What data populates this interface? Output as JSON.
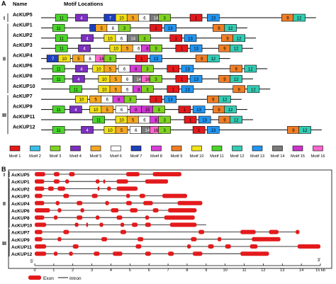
{
  "panel_a": {
    "label": "A",
    "name_header": "Name",
    "motif_header": "Motif Locations",
    "groups": [
      "I",
      "II",
      "III"
    ],
    "genes": [
      {
        "name": "AcKUP5",
        "group": "I",
        "motifs": [
          {
            "id": 11,
            "pos": 0.05
          },
          {
            "id": 4,
            "pos": 0.12
          },
          {
            "id": 7,
            "pos": 0.22
          },
          {
            "id": 10,
            "pos": 0.26
          },
          {
            "id": 5,
            "pos": 0.3
          },
          {
            "id": 6,
            "pos": 0.34
          },
          {
            "id": 14,
            "pos": 0.38
          },
          {
            "id": 3,
            "pos": 0.41
          },
          {
            "id": 1,
            "pos": 0.52
          },
          {
            "id": 13,
            "pos": 0.58
          },
          {
            "id": 9,
            "pos": 0.84
          },
          {
            "id": 12,
            "pos": 0.88
          }
        ]
      },
      {
        "name": "AcKUP1",
        "group": "II",
        "motifs": [
          {
            "id": 11,
            "pos": 0.04
          },
          {
            "id": 7,
            "pos": 0.17
          },
          {
            "id": 5,
            "pos": 0.19
          },
          {
            "id": 6,
            "pos": 0.23
          },
          {
            "id": 3,
            "pos": 0.27
          },
          {
            "id": 1,
            "pos": 0.38
          },
          {
            "id": 13,
            "pos": 0.43
          },
          {
            "id": 9,
            "pos": 0.6
          },
          {
            "id": 12,
            "pos": 0.64
          }
        ]
      },
      {
        "name": "AcKUP2",
        "group": "II",
        "motifs": [
          {
            "id": 11,
            "pos": 0.05
          },
          {
            "id": 4,
            "pos": 0.14
          },
          {
            "id": 10,
            "pos": 0.22
          },
          {
            "id": 6,
            "pos": 0.26
          },
          {
            "id": 14,
            "pos": 0.3
          },
          {
            "id": 3,
            "pos": 0.34
          },
          {
            "id": 1,
            "pos": 0.45
          },
          {
            "id": 13,
            "pos": 0.5
          },
          {
            "id": 9,
            "pos": 0.63
          },
          {
            "id": 12,
            "pos": 0.67
          }
        ]
      },
      {
        "name": "AcKUP3",
        "group": "II",
        "motifs": [
          {
            "id": 11,
            "pos": 0.05
          },
          {
            "id": 4,
            "pos": 0.13
          },
          {
            "id": 10,
            "pos": 0.24
          },
          {
            "id": 5,
            "pos": 0.28
          },
          {
            "id": 6,
            "pos": 0.32
          },
          {
            "id": 8,
            "pos": 0.35
          },
          {
            "id": 3,
            "pos": 0.38
          },
          {
            "id": 1,
            "pos": 0.47
          },
          {
            "id": 13,
            "pos": 0.52
          },
          {
            "id": 9,
            "pos": 0.62
          },
          {
            "id": 12,
            "pos": 0.66
          }
        ]
      },
      {
        "name": "AcKUP4",
        "group": "II",
        "motifs": [
          {
            "id": 7,
            "pos": 0.02
          },
          {
            "id": 10,
            "pos": 0.06
          },
          {
            "id": 5,
            "pos": 0.11
          },
          {
            "id": 6,
            "pos": 0.15
          },
          {
            "id": 16,
            "pos": 0.19
          },
          {
            "id": 3,
            "pos": 0.22
          },
          {
            "id": 1,
            "pos": 0.33
          },
          {
            "id": 13,
            "pos": 0.38
          },
          {
            "id": 9,
            "pos": 0.54
          },
          {
            "id": 12,
            "pos": 0.58
          }
        ]
      },
      {
        "name": "AcKUP6",
        "group": "II",
        "motifs": [
          {
            "id": 11,
            "pos": 0.04
          },
          {
            "id": 4,
            "pos": 0.12
          },
          {
            "id": 10,
            "pos": 0.18
          },
          {
            "id": 5,
            "pos": 0.22
          },
          {
            "id": 6,
            "pos": 0.27
          },
          {
            "id": 8,
            "pos": 0.31
          },
          {
            "id": 3,
            "pos": 0.35
          },
          {
            "id": 1,
            "pos": 0.44
          },
          {
            "id": 13,
            "pos": 0.49
          },
          {
            "id": 9,
            "pos": 0.66
          },
          {
            "id": 12,
            "pos": 0.71
          }
        ]
      },
      {
        "name": "AcKUP8",
        "group": "II",
        "motifs": [
          {
            "id": 11,
            "pos": 0.04
          },
          {
            "id": 4,
            "pos": 0.11
          },
          {
            "id": 10,
            "pos": 0.2
          },
          {
            "id": 5,
            "pos": 0.24
          },
          {
            "id": 6,
            "pos": 0.28
          },
          {
            "id": 14,
            "pos": 0.32
          },
          {
            "id": 16,
            "pos": 0.35
          },
          {
            "id": 3,
            "pos": 0.38
          },
          {
            "id": 1,
            "pos": 0.47
          },
          {
            "id": 13,
            "pos": 0.52
          },
          {
            "id": 9,
            "pos": 0.62
          },
          {
            "id": 12,
            "pos": 0.66
          }
        ]
      },
      {
        "name": "AcKUP10",
        "group": "II",
        "motifs": [
          {
            "id": 11,
            "pos": 0.1
          },
          {
            "id": 10,
            "pos": 0.2
          },
          {
            "id": 5,
            "pos": 0.24
          },
          {
            "id": 6,
            "pos": 0.28
          },
          {
            "id": 8,
            "pos": 0.32
          },
          {
            "id": 3,
            "pos": 0.35
          },
          {
            "id": 1,
            "pos": 0.44
          },
          {
            "id": 13,
            "pos": 0.49
          },
          {
            "id": 9,
            "pos": 0.67
          },
          {
            "id": 12,
            "pos": 0.72
          }
        ]
      },
      {
        "name": "AcKUP7",
        "group": "III",
        "motifs": [
          {
            "id": 10,
            "pos": 0.12
          },
          {
            "id": 5,
            "pos": 0.17
          },
          {
            "id": 6,
            "pos": 0.21
          },
          {
            "id": 8,
            "pos": 0.25
          },
          {
            "id": 3,
            "pos": 0.29
          },
          {
            "id": 1,
            "pos": 0.38
          },
          {
            "id": 13,
            "pos": 0.43
          },
          {
            "id": 9,
            "pos": 0.58
          },
          {
            "id": 12,
            "pos": 0.62
          }
        ]
      },
      {
        "name": "AcKUP9",
        "group": "III",
        "motifs": [
          {
            "id": 11,
            "pos": 0.04
          },
          {
            "id": 4,
            "pos": 0.1
          },
          {
            "id": 10,
            "pos": 0.17
          },
          {
            "id": 5,
            "pos": 0.21
          },
          {
            "id": 6,
            "pos": 0.26
          },
          {
            "id": 8,
            "pos": 0.31
          },
          {
            "id": 15,
            "pos": 0.35
          },
          {
            "id": 3,
            "pos": 0.39
          },
          {
            "id": 1,
            "pos": 0.48
          },
          {
            "id": 13,
            "pos": 0.53
          },
          {
            "id": 9,
            "pos": 0.6
          },
          {
            "id": 12,
            "pos": 0.64
          }
        ]
      },
      {
        "name": "AcKUP11",
        "group": "III",
        "motifs": [
          {
            "id": 11,
            "pos": 0.18
          },
          {
            "id": 10,
            "pos": 0.26
          },
          {
            "id": 5,
            "pos": 0.3
          },
          {
            "id": 6,
            "pos": 0.34
          },
          {
            "id": 8,
            "pos": 0.38
          },
          {
            "id": 3,
            "pos": 0.41
          },
          {
            "id": 1,
            "pos": 0.5
          },
          {
            "id": 13,
            "pos": 0.55
          },
          {
            "id": 9,
            "pos": 0.62
          },
          {
            "id": 12,
            "pos": 0.66
          }
        ]
      },
      {
        "name": "AcKUP12",
        "group": "III",
        "motifs": [
          {
            "id": 11,
            "pos": 0.04
          },
          {
            "id": 4,
            "pos": 0.14
          },
          {
            "id": 10,
            "pos": 0.22
          },
          {
            "id": 5,
            "pos": 0.26
          },
          {
            "id": 6,
            "pos": 0.31
          },
          {
            "id": 14,
            "pos": 0.35
          },
          {
            "id": 16,
            "pos": 0.38
          },
          {
            "id": 3,
            "pos": 0.41
          },
          {
            "id": 1,
            "pos": 0.53
          },
          {
            "id": 13,
            "pos": 0.58
          },
          {
            "id": 9,
            "pos": 0.86
          },
          {
            "id": 12,
            "pos": 0.9
          }
        ]
      }
    ],
    "legend": [
      {
        "id": 1,
        "label": "Motif 1",
        "color": "#e31a1c"
      },
      {
        "id": 2,
        "label": "Motif 2",
        "color": "#39c0e8"
      },
      {
        "id": 3,
        "label": "Motif 3",
        "color": "#7ed321"
      },
      {
        "id": 4,
        "label": "Motif 4",
        "color": "#7b2fbe"
      },
      {
        "id": 5,
        "label": "Motif 5",
        "color": "#f5a623"
      },
      {
        "id": 6,
        "label": "Motif 6",
        "color": "#ffffff"
      },
      {
        "id": 7,
        "label": "Motif 7",
        "color": "#1f3fbf"
      },
      {
        "id": 8,
        "label": "Motif 8",
        "color": "#d63fd6"
      },
      {
        "id": 9,
        "label": "Motif 9",
        "color": "#f07e26"
      },
      {
        "id": 10,
        "label": "Motif 10",
        "color": "#f2e21a"
      },
      {
        "id": 11,
        "label": "Motif 11",
        "color": "#4bd62a"
      },
      {
        "id": 12,
        "label": "Motif 12",
        "color": "#33ccb4"
      },
      {
        "id": 13,
        "label": "Motif 13",
        "color": "#2196f3"
      },
      {
        "id": 14,
        "label": "Motif 14",
        "color": "#7a7a7a"
      },
      {
        "id": 15,
        "label": "Motif 15",
        "color": "#cc33cc"
      },
      {
        "id": 16,
        "label": "Motif 16",
        "color": "#ff66cc"
      }
    ]
  },
  "panel_b": {
    "label": "B",
    "groups": [
      "I",
      "II",
      "III"
    ],
    "axis_ticks": [
      "0",
      "1",
      "2",
      "3",
      "4",
      "5",
      "6",
      "7",
      "8",
      "9",
      "10",
      "11",
      "12",
      "13",
      "14",
      "15 kb"
    ],
    "end5": "5'",
    "end3": "3'",
    "legend_exon": "Exon",
    "legend_intron": "Intron",
    "exon_color": "#e31a1c",
    "genes": [
      {
        "name": "AcKUP5",
        "length": 7.7,
        "exons": [
          [
            0.0,
            0.55
          ],
          [
            1.0,
            1.3
          ],
          [
            1.8,
            2.1
          ],
          [
            4.8,
            5.5
          ],
          [
            6.2,
            7.7
          ]
        ]
      },
      {
        "name": "AcKUP1",
        "length": 7.0,
        "exons": [
          [
            0.0,
            0.5
          ],
          [
            1.0,
            1.3
          ],
          [
            1.6,
            1.8
          ],
          [
            3.2,
            3.4
          ],
          [
            3.6,
            3.7
          ],
          [
            4.3,
            4.9
          ],
          [
            5.8,
            7.0
          ]
        ]
      },
      {
        "name": "AcKUP2",
        "length": 5.4,
        "exons": [
          [
            0.0,
            0.5
          ],
          [
            0.7,
            1.0
          ],
          [
            1.2,
            1.6
          ],
          [
            3.3,
            3.4
          ],
          [
            3.8,
            4.0
          ],
          [
            4.3,
            5.4
          ]
        ]
      },
      {
        "name": "AcKUP3",
        "length": 8.0,
        "exons": [
          [
            0.0,
            0.4
          ],
          [
            1.5,
            1.8
          ],
          [
            3.0,
            3.3
          ],
          [
            4.8,
            5.0
          ],
          [
            5.5,
            5.8
          ],
          [
            6.7,
            8.0
          ]
        ]
      },
      {
        "name": "AcKUP4",
        "length": 8.8,
        "exons": [
          [
            0.0,
            0.5
          ],
          [
            1.1,
            1.3
          ],
          [
            2.2,
            2.5
          ],
          [
            3.7,
            3.9
          ],
          [
            4.8,
            5.1
          ],
          [
            5.7,
            6.2
          ],
          [
            7.5,
            8.8
          ]
        ]
      },
      {
        "name": "AcKUP6",
        "length": 8.5,
        "exons": [
          [
            0.0,
            0.8
          ],
          [
            1.2,
            1.4
          ],
          [
            2.4,
            2.6
          ],
          [
            4.0,
            4.4
          ],
          [
            5.0,
            5.4
          ],
          [
            6.2,
            6.5
          ],
          [
            7.0,
            8.5
          ]
        ]
      },
      {
        "name": "AcKUP8",
        "length": 8.4,
        "exons": [
          [
            0.0,
            0.5
          ],
          [
            1.0,
            1.2
          ],
          [
            2.2,
            2.5
          ],
          [
            3.2,
            3.4
          ],
          [
            4.3,
            4.6
          ],
          [
            5.8,
            6.0
          ],
          [
            6.8,
            8.4
          ]
        ]
      },
      {
        "name": "AcKUP10",
        "length": 9.0,
        "exons": [
          [
            0.0,
            0.6
          ],
          [
            2.1,
            2.3
          ],
          [
            2.7,
            2.8
          ],
          [
            3.4,
            3.6
          ],
          [
            4.5,
            4.7
          ],
          [
            5.1,
            5.4
          ],
          [
            5.8,
            6.1
          ],
          [
            7.1,
            8.5
          ]
        ]
      },
      {
        "name": "AcKUP7",
        "length": 13.9,
        "exons": [
          [
            0.0,
            0.4
          ],
          [
            1.5,
            1.8
          ],
          [
            4.5,
            4.8
          ],
          [
            8.6,
            8.9
          ],
          [
            10.8,
            11.6
          ],
          [
            12.3,
            12.8
          ],
          [
            13.7,
            13.9
          ]
        ]
      },
      {
        "name": "AcKUP9",
        "length": 12.9,
        "exons": [
          [
            0.0,
            0.4
          ],
          [
            1.2,
            1.4
          ],
          [
            3.5,
            3.8
          ],
          [
            5.4,
            5.7
          ],
          [
            8.2,
            8.5
          ],
          [
            9.6,
            9.8
          ],
          [
            11.4,
            12.9
          ]
        ]
      },
      {
        "name": "AcKUP11",
        "length": 15.0,
        "exons": [
          [
            0.0,
            0.6
          ],
          [
            2.0,
            2.3
          ],
          [
            5.3,
            5.6
          ],
          [
            8.0,
            8.2
          ],
          [
            9.1,
            9.4
          ],
          [
            10.0,
            10.3
          ],
          [
            11.3,
            11.7
          ],
          [
            13.8,
            15.0
          ]
        ]
      },
      {
        "name": "AcKUP12",
        "length": 12.3,
        "exons": [
          [
            0.0,
            0.6
          ],
          [
            1.0,
            1.2
          ],
          [
            1.8,
            2.0
          ],
          [
            3.1,
            3.4
          ],
          [
            4.1,
            4.6
          ],
          [
            5.8,
            6.1
          ],
          [
            7.0,
            7.3
          ],
          [
            8.3,
            8.8
          ],
          [
            10.8,
            12.3
          ]
        ]
      }
    ]
  }
}
